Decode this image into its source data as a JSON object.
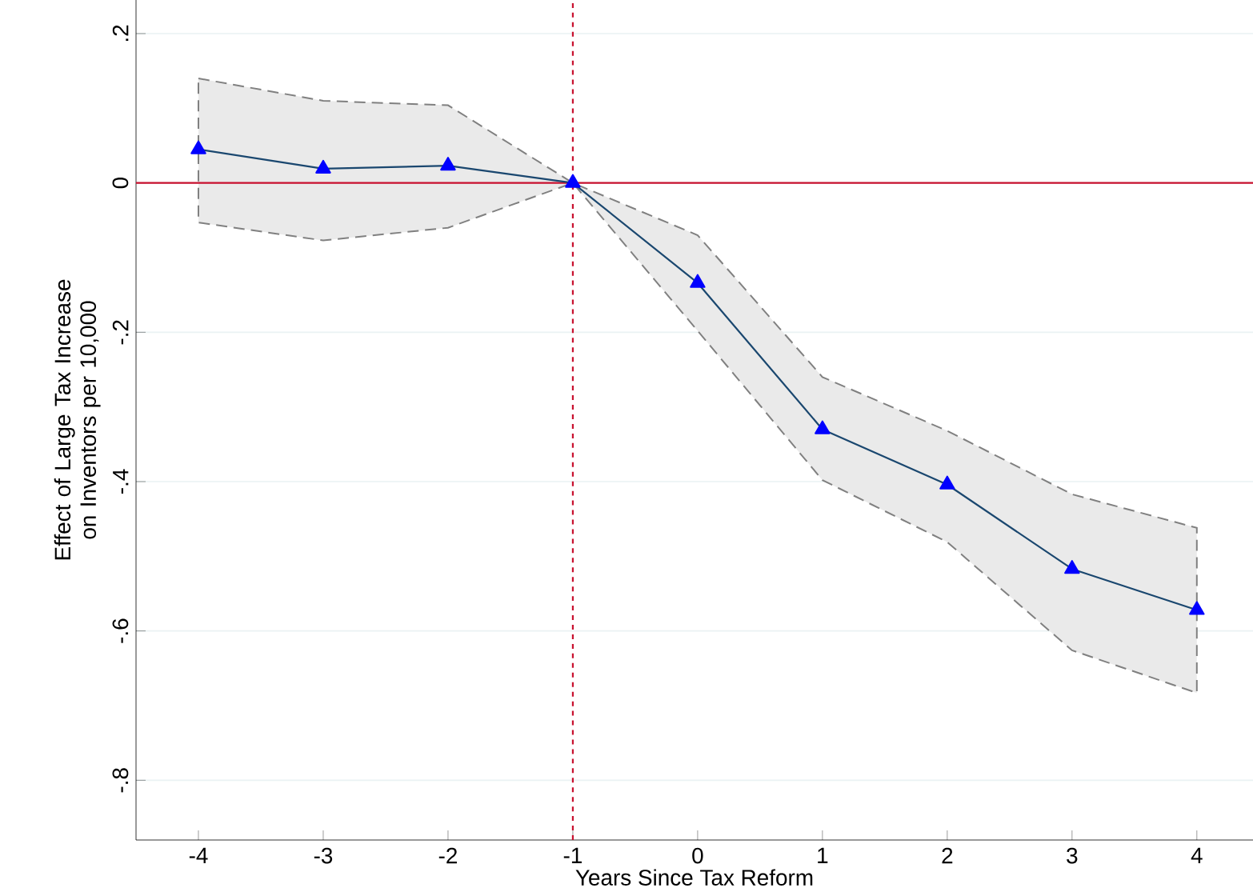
{
  "chart_data": {
    "type": "line",
    "xlabel": "Years Since Tax Reform",
    "ylabel": "Effect of Large Tax Increase on Inventors per 10,000",
    "x": [
      -4,
      -3,
      -2,
      -1,
      0,
      1,
      2,
      3,
      4
    ],
    "series": [
      {
        "color": "#1a476f",
        "values": [
          0.045,
          0.019,
          0.023,
          0,
          -0.134,
          -0.33,
          -0.404,
          -0.517,
          -0.572
        ],
        "lower": [
          -0.053,
          -0.077,
          -0.06,
          0,
          -0.198,
          -0.398,
          -0.481,
          -0.626,
          -0.683
        ],
        "upper": [
          0.14,
          0.11,
          0.104,
          0,
          -0.07,
          -0.26,
          -0.332,
          -0.417,
          -0.462
        ]
      }
    ],
    "marker": "triangle",
    "line_style": "solid",
    "grid": "y",
    "xlim": [
      -4.5,
      4.45
    ],
    "ylim": [
      -0.88,
      0.245
    ],
    "xticks": [
      -4,
      -3,
      -2,
      -1,
      0,
      1,
      2,
      3,
      4
    ],
    "yticks": [
      {
        "value": -0.8,
        "label": "-.8"
      },
      {
        "value": -0.6,
        "label": "-.6"
      },
      {
        "value": -0.4,
        "label": "-.4"
      },
      {
        "value": -0.2,
        "label": "-.2"
      },
      {
        "value": 0,
        "label": "0"
      },
      {
        "value": 0.2,
        "label": ".2"
      }
    ],
    "ref_lines": [
      {
        "axis": "y",
        "value": 0,
        "color": "#c8102e",
        "line_style": "solid"
      },
      {
        "axis": "x",
        "value": -1,
        "color": "#c8102e",
        "line_style": "dashed"
      }
    ]
  }
}
